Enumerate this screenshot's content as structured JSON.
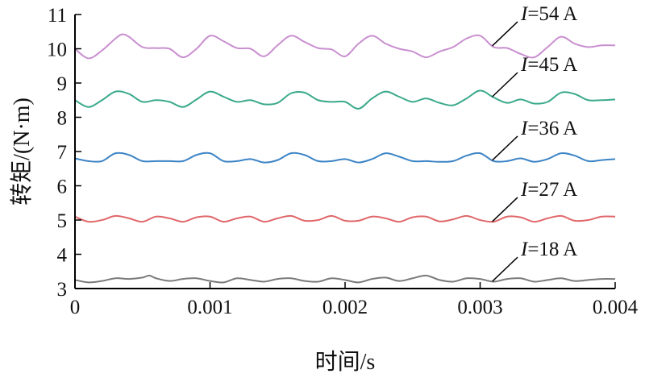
{
  "chart_data": {
    "type": "line",
    "title": "",
    "xlabel": "时间/s",
    "ylabel": "转矩/(N·m)",
    "xlim": [
      0,
      0.004
    ],
    "ylim": [
      3,
      11
    ],
    "xticks": [
      0,
      0.001,
      0.002,
      0.003,
      0.004
    ],
    "xtick_labels": [
      "0",
      "0.001",
      "0.002",
      "0.003",
      "0.004"
    ],
    "yticks": [
      3,
      4,
      5,
      6,
      7,
      8,
      9,
      10,
      11
    ],
    "ytick_labels": [
      "3",
      "4",
      "5",
      "6",
      "7",
      "8",
      "9",
      "10",
      "11"
    ],
    "grid": false,
    "legend": "none",
    "series": [
      {
        "name": "I=54 A",
        "label_var": "I",
        "label_rest": "=54 A",
        "color": "#c98fd0",
        "x": [
          0,
          0.0001,
          0.0002,
          0.0003,
          0.00035,
          0.0004,
          0.0005,
          0.0006,
          0.0007,
          0.0008,
          0.0009,
          0.001,
          0.0011,
          0.0012,
          0.0013,
          0.0014,
          0.0015,
          0.0016,
          0.0017,
          0.0018,
          0.0019,
          0.002,
          0.0021,
          0.0022,
          0.0023,
          0.0024,
          0.0025,
          0.0026,
          0.0027,
          0.0028,
          0.0029,
          0.003,
          0.0031,
          0.0032,
          0.0033,
          0.0034,
          0.0035,
          0.0036,
          0.0037,
          0.0038,
          0.0039,
          0.004
        ],
        "y": [
          10.0,
          9.72,
          9.95,
          10.3,
          10.42,
          10.35,
          10.05,
          10.02,
          10.0,
          9.75,
          10.0,
          10.38,
          10.22,
          10.02,
          10.0,
          9.78,
          10.1,
          10.38,
          10.2,
          10.02,
          9.98,
          9.78,
          10.15,
          10.38,
          10.15,
          10.0,
          9.92,
          9.75,
          9.92,
          10.05,
          10.3,
          10.38,
          10.05,
          10.02,
          9.85,
          9.75,
          10.05,
          10.35,
          10.15,
          10.05,
          10.1,
          10.1
        ]
      },
      {
        "name": "I=45 A",
        "label_var": "I",
        "label_rest": "=45 A",
        "color": "#3aa98b",
        "x": [
          0,
          0.0001,
          0.0002,
          0.0003,
          0.0004,
          0.0005,
          0.0006,
          0.0007,
          0.0008,
          0.0009,
          0.001,
          0.0011,
          0.0012,
          0.0013,
          0.0014,
          0.0015,
          0.0016,
          0.0017,
          0.0018,
          0.0019,
          0.002,
          0.0021,
          0.0022,
          0.0023,
          0.0024,
          0.0025,
          0.0026,
          0.0027,
          0.0028,
          0.0029,
          0.003,
          0.0031,
          0.0032,
          0.0033,
          0.0034,
          0.0035,
          0.0036,
          0.0037,
          0.0038,
          0.0039,
          0.004
        ],
        "y": [
          8.5,
          8.3,
          8.5,
          8.75,
          8.68,
          8.45,
          8.5,
          8.45,
          8.3,
          8.52,
          8.75,
          8.6,
          8.45,
          8.5,
          8.38,
          8.42,
          8.7,
          8.72,
          8.5,
          8.45,
          8.45,
          8.25,
          8.55,
          8.75,
          8.6,
          8.45,
          8.55,
          8.42,
          8.35,
          8.55,
          8.78,
          8.58,
          8.42,
          8.52,
          8.4,
          8.45,
          8.72,
          8.68,
          8.5,
          8.5,
          8.52
        ]
      },
      {
        "name": "I=36 A",
        "label_var": "I",
        "label_rest": "=36 A",
        "color": "#3c84c6",
        "x": [
          0,
          0.0001,
          0.0002,
          0.0003,
          0.0004,
          0.0005,
          0.0006,
          0.0007,
          0.0008,
          0.0009,
          0.001,
          0.0011,
          0.0012,
          0.0013,
          0.0014,
          0.0015,
          0.0016,
          0.0017,
          0.0018,
          0.0019,
          0.002,
          0.0021,
          0.0022,
          0.0023,
          0.0024,
          0.0025,
          0.0026,
          0.0027,
          0.0028,
          0.0029,
          0.003,
          0.0031,
          0.0032,
          0.0033,
          0.0034,
          0.0035,
          0.0036,
          0.0037,
          0.0038,
          0.0039,
          0.004
        ],
        "y": [
          6.8,
          6.72,
          6.72,
          6.95,
          6.9,
          6.72,
          6.72,
          6.72,
          6.72,
          6.9,
          6.95,
          6.72,
          6.72,
          6.78,
          6.68,
          6.75,
          6.95,
          6.9,
          6.72,
          6.72,
          6.78,
          6.68,
          6.78,
          6.95,
          6.85,
          6.72,
          6.72,
          6.7,
          6.72,
          6.88,
          6.95,
          6.72,
          6.72,
          6.8,
          6.7,
          6.78,
          6.95,
          6.88,
          6.72,
          6.75,
          6.78
        ]
      },
      {
        "name": "I=27 A",
        "label_var": "I",
        "label_rest": "=27 A",
        "color": "#e0676a",
        "x": [
          0,
          0.0001,
          0.0002,
          0.0003,
          0.0004,
          0.0005,
          0.0006,
          0.0007,
          0.0008,
          0.0009,
          0.001,
          0.0011,
          0.0012,
          0.0013,
          0.0014,
          0.0015,
          0.0016,
          0.0017,
          0.0018,
          0.0019,
          0.002,
          0.0021,
          0.0022,
          0.0023,
          0.0024,
          0.0025,
          0.0026,
          0.0027,
          0.0028,
          0.0029,
          0.003,
          0.0031,
          0.0032,
          0.0033,
          0.0034,
          0.0035,
          0.0036,
          0.0037,
          0.0038,
          0.0039,
          0.004
        ],
        "y": [
          5.1,
          4.95,
          5.0,
          5.12,
          5.05,
          4.95,
          5.1,
          5.05,
          4.95,
          5.08,
          5.1,
          4.95,
          5.05,
          5.1,
          4.95,
          5.05,
          5.12,
          4.98,
          5.0,
          5.12,
          4.98,
          4.98,
          5.1,
          5.05,
          4.95,
          5.08,
          5.1,
          4.96,
          5.02,
          5.12,
          5.0,
          4.95,
          5.1,
          5.08,
          4.95,
          5.05,
          5.12,
          4.98,
          5.0,
          5.1,
          5.1
        ]
      },
      {
        "name": "I=18 A",
        "label_var": "I",
        "label_rest": "=18 A",
        "color": "#7a7a7a",
        "x": [
          0,
          0.0001,
          0.0002,
          0.0003,
          0.0004,
          0.0005,
          0.00055,
          0.0006,
          0.0007,
          0.0008,
          0.0009,
          0.001,
          0.0011,
          0.0012,
          0.0013,
          0.0014,
          0.0015,
          0.0016,
          0.0017,
          0.0018,
          0.0019,
          0.002,
          0.0021,
          0.0022,
          0.0023,
          0.0024,
          0.0025,
          0.0026,
          0.0027,
          0.0028,
          0.0029,
          0.003,
          0.0031,
          0.0032,
          0.0033,
          0.0034,
          0.0035,
          0.0036,
          0.0037,
          0.0038,
          0.0039,
          0.004
        ],
        "y": [
          3.25,
          3.18,
          3.22,
          3.3,
          3.28,
          3.32,
          3.38,
          3.3,
          3.22,
          3.28,
          3.3,
          3.22,
          3.18,
          3.3,
          3.25,
          3.2,
          3.28,
          3.3,
          3.22,
          3.2,
          3.3,
          3.25,
          3.18,
          3.28,
          3.32,
          3.22,
          3.3,
          3.38,
          3.25,
          3.2,
          3.3,
          3.28,
          3.2,
          3.28,
          3.3,
          3.2,
          3.25,
          3.3,
          3.22,
          3.25,
          3.28,
          3.28
        ]
      }
    ]
  }
}
